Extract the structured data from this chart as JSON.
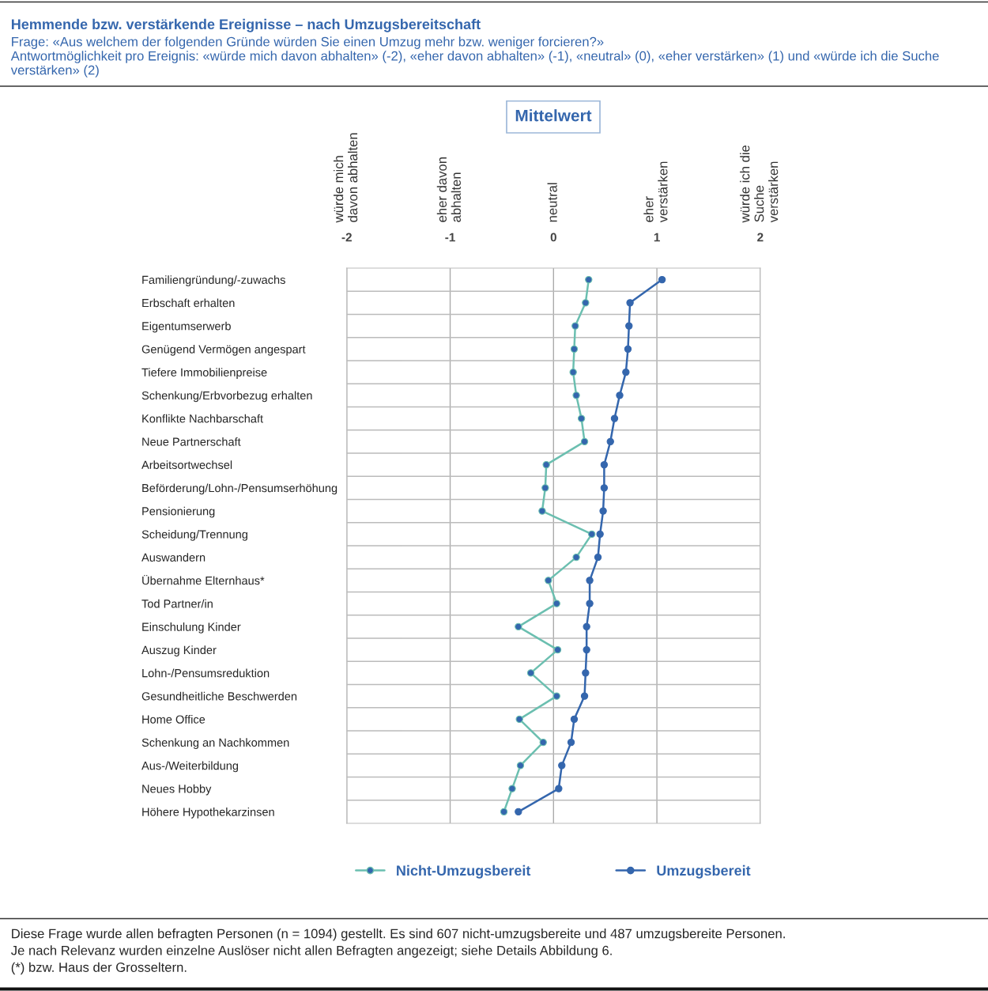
{
  "chart_data": {
    "type": "line",
    "orientation": "horizontal",
    "title": "Hemmende bzw. verstärkende Ereignisse – nach Umzugsbereitschaft",
    "subtitle": "Frage: «Aus welchem der folgenden Gründe würden Sie einen Umzug mehr bzw. weniger forcieren?»\nAntwortmöglichkeit pro Ereignis: «würde mich davon abhalten» (-2), «eher davon abhalten» (-1), «neutral» (0), «eher verstärken» (1) und «würde ich die Suche verstärken» (2)",
    "categories": [
      "Familiengründung/-zuwachs",
      "Erbschaft erhalten",
      "Eigentumserwerb",
      "Genügend Vermögen angespart",
      "Tiefere Immobilienpreise",
      "Schenkung/Erbvorbezug erhalten",
      "Konflikte Nachbarschaft",
      "Neue Partnerschaft",
      "Arbeitsortwechsel",
      "Beförderung/Lohn-/Pensumserhöhung",
      "Pensionierung",
      "Scheidung/Trennung",
      "Auswandern",
      "Übernahme Elternhaus*",
      "Tod Partner/in",
      "Einschulung Kinder",
      "Auszug Kinder",
      "Lohn-/Pensumsreduktion",
      "Gesundheitliche Beschwerden",
      "Home Office",
      "Schenkung an Nachkommen",
      "Aus-/Weiterbildung",
      "Neues Hobby",
      "Höhere Hypothekarzinsen"
    ],
    "series": [
      {
        "name": "Nicht-Umzugsbereit",
        "color": "#6bbfb0",
        "values": [
          0.34,
          0.31,
          0.21,
          0.2,
          0.19,
          0.22,
          0.27,
          0.3,
          -0.07,
          -0.08,
          -0.11,
          0.37,
          0.22,
          -0.05,
          0.03,
          -0.34,
          0.04,
          -0.22,
          0.03,
          -0.33,
          -0.1,
          -0.32,
          -0.4,
          -0.48
        ]
      },
      {
        "name": "Umzugsbereit",
        "color": "#3466ad",
        "values": [
          1.05,
          0.74,
          0.73,
          0.72,
          0.7,
          0.64,
          0.59,
          0.55,
          0.49,
          0.49,
          0.48,
          0.45,
          0.43,
          0.35,
          0.35,
          0.32,
          0.32,
          0.31,
          0.3,
          0.2,
          0.17,
          0.08,
          0.05,
          -0.34
        ]
      }
    ],
    "xlim": [
      -2,
      2
    ],
    "xticks": [
      -2,
      -1,
      0,
      1,
      2
    ],
    "grid": true,
    "legend": "bottom",
    "marker": "circle",
    "line_style": "solid",
    "annotations": [
      "Mittelwert",
      "würde mich\ndavon abhalten",
      "eher davon\nabhalten",
      "neutral",
      "eher\nverstärken",
      "würde ich die\nSuche\nverstärken",
      "Diese Frage wurde allen befragten Personen (n = 1094) gestellt. Es sind 607 nicht-umzugsbereite und 487 umzugsbereite Personen.",
      "Je nach Relevanz wurden einzelne Auslöser nicht allen Befragten angezeigt; siehe Details Abbildung 6.",
      "(*) bzw. Haus der Grosseltern."
    ]
  }
}
